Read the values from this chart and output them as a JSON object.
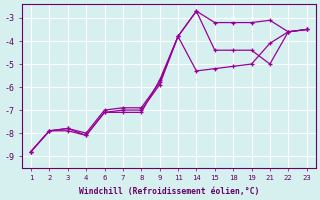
{
  "xlabel": "Windchill (Refroidissement éolien,°C)",
  "bg_color": "#d6f0f0",
  "line_color": "#990099",
  "grid_color": "#ffffff",
  "xtick_labels": [
    "1",
    "2",
    "3",
    "4",
    "6",
    "7",
    "8",
    "9",
    "11",
    "14",
    "15",
    "18",
    "19",
    "21",
    "22",
    "23"
  ],
  "yticks": [
    -9,
    -8,
    -7,
    -6,
    -5,
    -4,
    -3
  ],
  "ylim": [
    -9.5,
    -2.4
  ],
  "lines": [
    {
      "y": [
        -8.8,
        -7.9,
        -7.9,
        -8.1,
        -7.1,
        -7.1,
        -7.1,
        -5.7,
        -3.8,
        -2.7,
        -3.2,
        -3.2,
        -3.2,
        -3.1,
        -3.6,
        -3.5
      ]
    },
    {
      "y": [
        -8.8,
        -7.9,
        -7.8,
        -8.1,
        -7.1,
        -7.0,
        -7.0,
        -5.9,
        -3.8,
        -2.7,
        -4.4,
        -4.4,
        -4.4,
        -5.0,
        -3.6,
        -3.5
      ]
    },
    {
      "y": [
        -8.8,
        -7.9,
        -7.8,
        -8.0,
        -7.0,
        -6.9,
        -6.9,
        -5.8,
        -3.8,
        -5.3,
        -5.2,
        -5.1,
        -5.0,
        -4.1,
        -3.6,
        -3.5
      ]
    }
  ]
}
